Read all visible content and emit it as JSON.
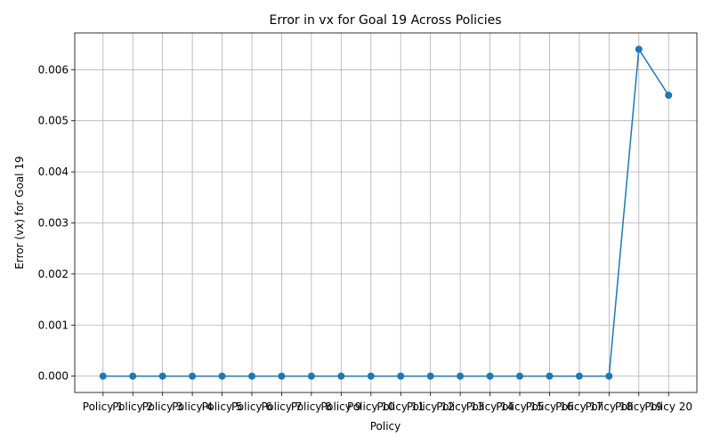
{
  "chart_data": {
    "type": "line",
    "title": "Error in vx for Goal 19 Across Policies",
    "xlabel": "Policy",
    "ylabel": "Error (vx) for Goal 19",
    "categories": [
      "Policy 1",
      "Policy 2",
      "Policy 3",
      "Policy 4",
      "Policy 5",
      "Policy 6",
      "Policy 7",
      "Policy 8",
      "Policy 9",
      "Policy 10",
      "Policy 11",
      "Policy 12",
      "Policy 13",
      "Policy 14",
      "Policy 15",
      "Policy 16",
      "Policy 17",
      "Policy 18",
      "Policy 19",
      "Policy 20"
    ],
    "values": [
      0,
      0,
      0,
      0,
      0,
      0,
      0,
      0,
      0,
      0,
      0,
      0,
      0,
      0,
      0,
      0,
      0,
      0,
      0.0064,
      0.0055
    ],
    "ylim": [
      -0.00032,
      0.00672
    ],
    "yticks": [
      0,
      0.001,
      0.002,
      0.003,
      0.004,
      0.005,
      0.006
    ],
    "ytick_labels": [
      "0.000",
      "0.001",
      "0.002",
      "0.003",
      "0.004",
      "0.005",
      "0.006"
    ],
    "grid": true,
    "line_color": "#1f77b4",
    "marker": "circle"
  }
}
